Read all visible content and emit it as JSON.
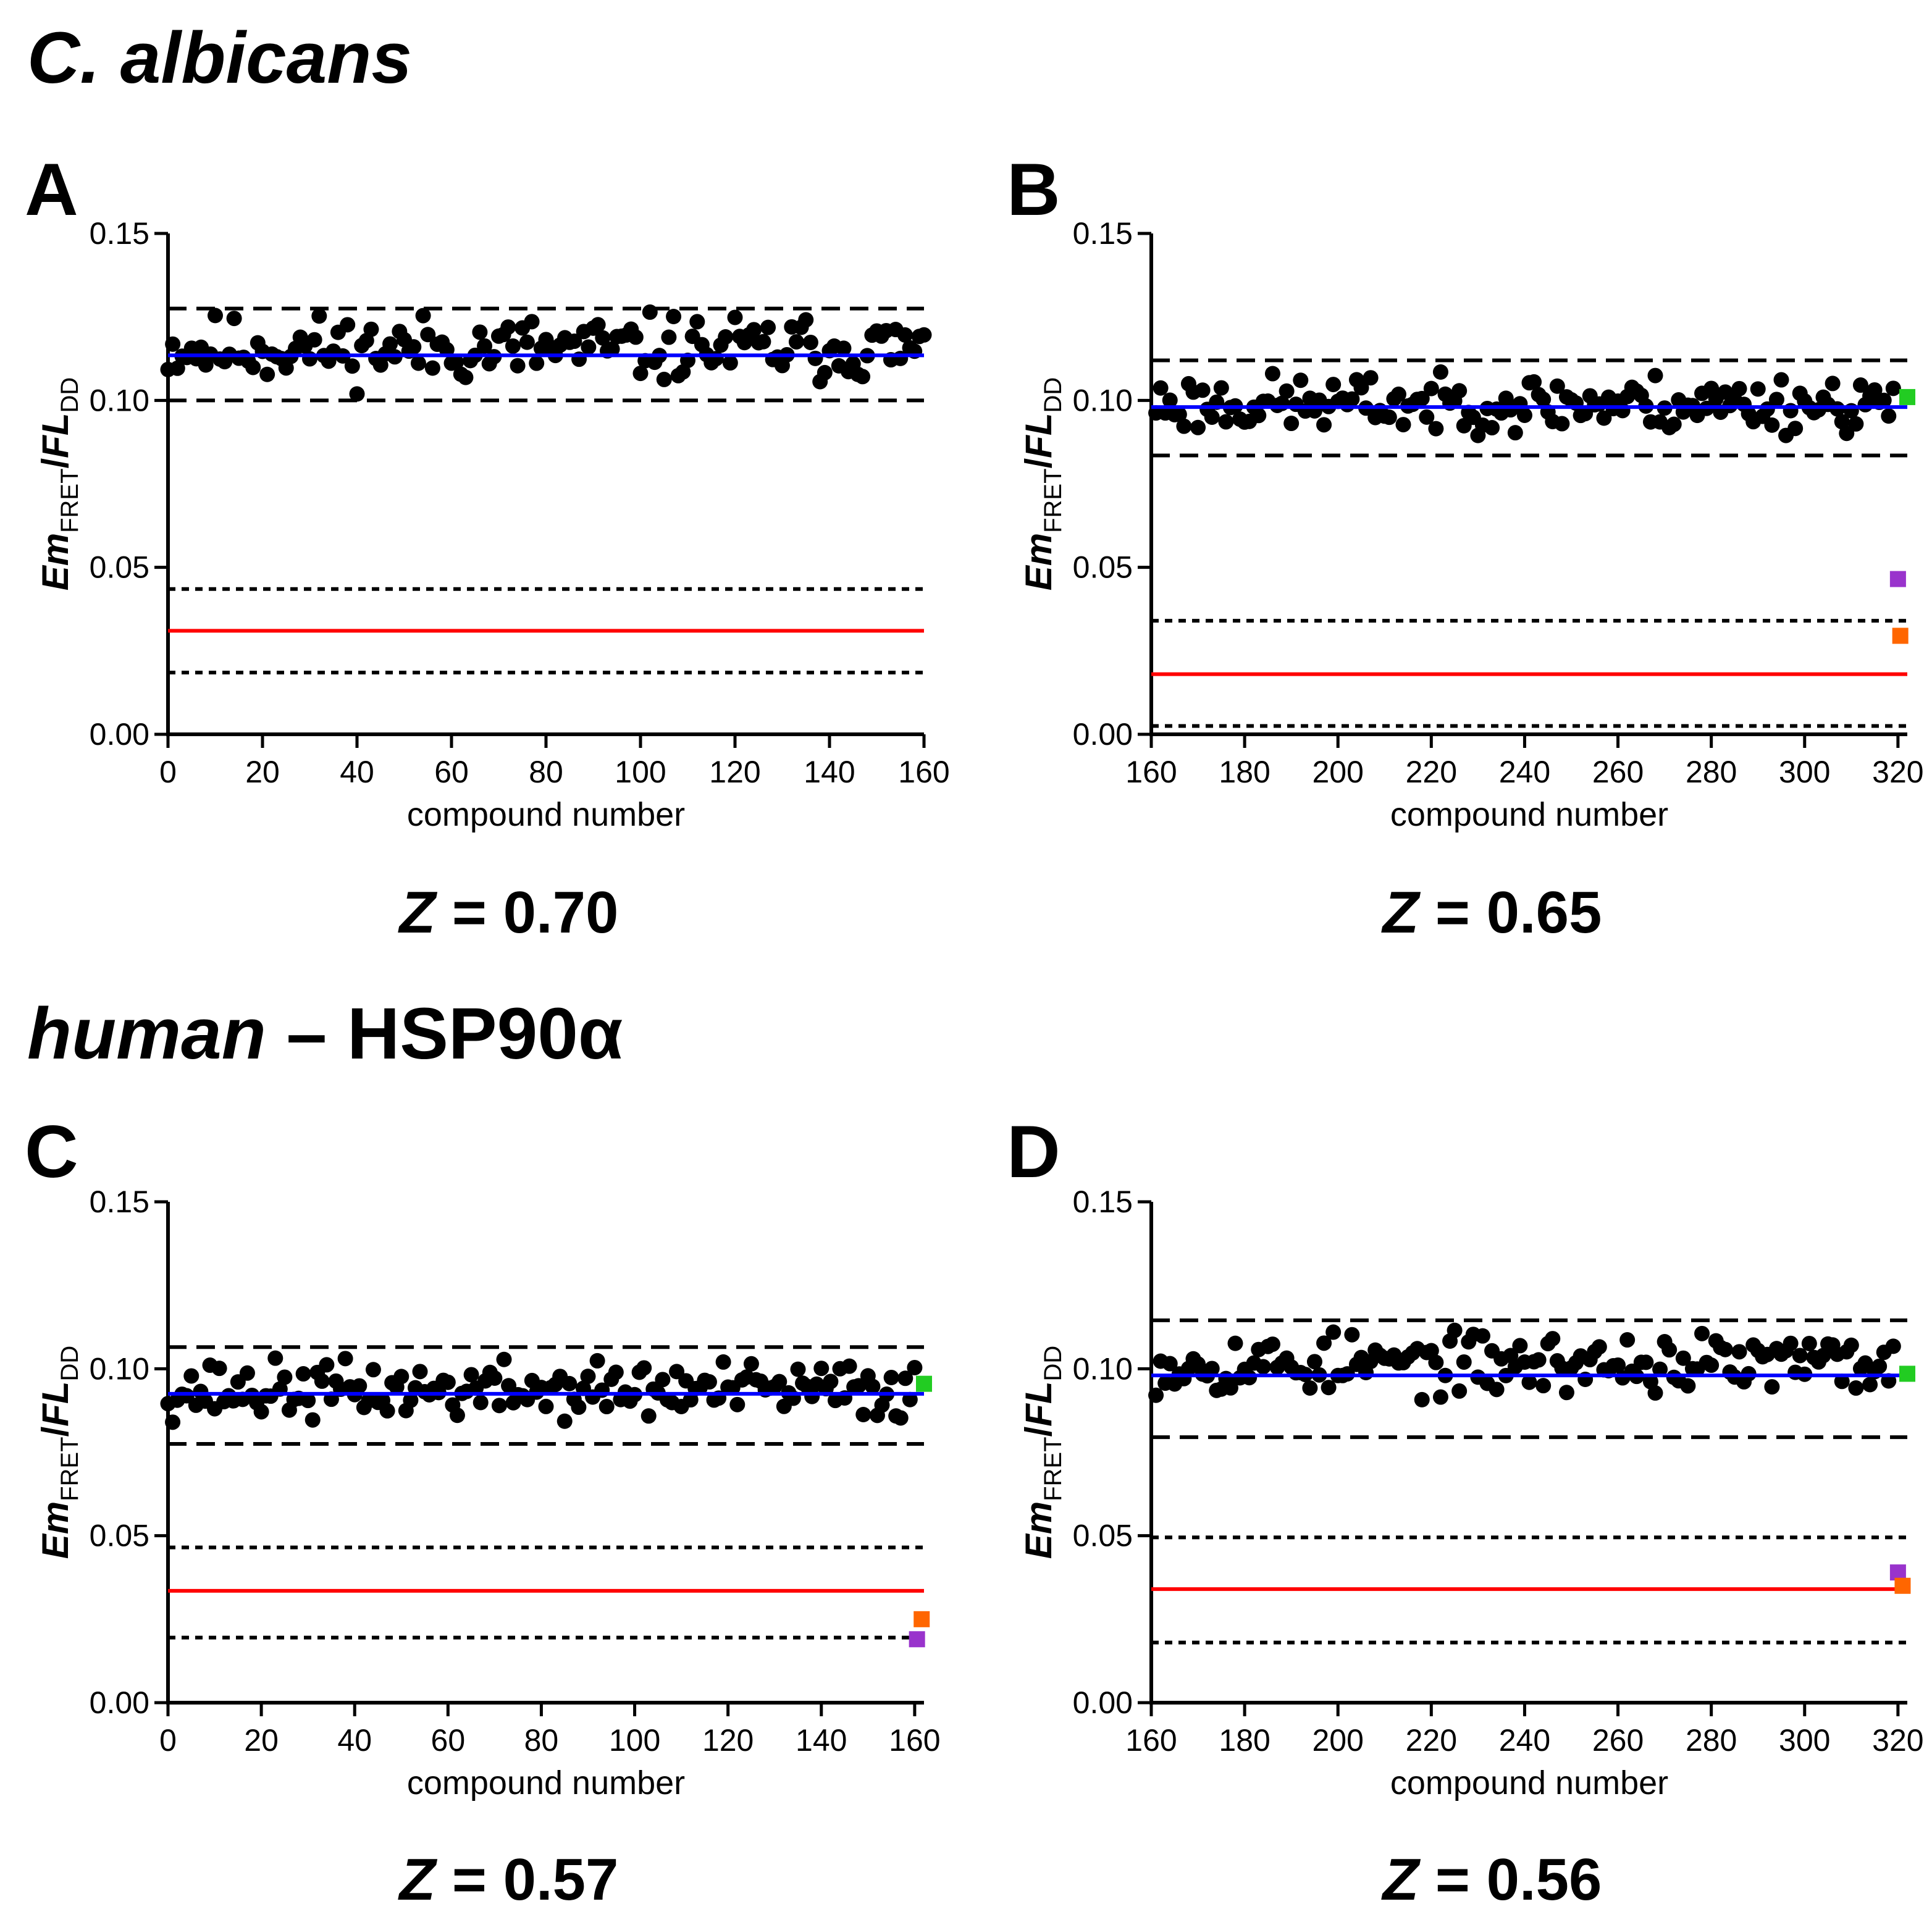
{
  "figure": {
    "section_titles": [
      {
        "italic": "C. albicans",
        "plain": ""
      },
      {
        "italic": "human",
        "plain": " – HSP90α"
      }
    ]
  },
  "colors": {
    "points": "#000000",
    "mean_sample": "#0000ff",
    "mean_control": "#ff0000",
    "green_marker": "#22cc22",
    "purple_marker": "#9933cc",
    "orange_marker": "#ff6600"
  },
  "chart_data": [
    {
      "panel": "A",
      "type": "scatter",
      "xlabel": "compound number",
      "ylabel": {
        "italic": "Em",
        "sub1": "FRET",
        "slash": "/",
        "italic2": "FL",
        "sub2": "DD"
      },
      "xlim": [
        0,
        160
      ],
      "xticks": [
        0,
        20,
        40,
        60,
        80,
        100,
        120,
        140,
        160
      ],
      "ylim": [
        0,
        0.15
      ],
      "yticks": [
        "0.00",
        "0.05",
        "0.10",
        "0.15"
      ],
      "grid": false,
      "z_label": {
        "italic": "Z",
        "text": " = 0.70"
      },
      "mean_sample": 0.1135,
      "sample_bands": [
        0.1275,
        0.1
      ],
      "mean_control": 0.031,
      "control_bands": [
        0.0435,
        0.0185
      ],
      "points": {
        "x_start": 0,
        "x_end": 160,
        "count": 161,
        "mean": 0.1155,
        "min": 0.1005,
        "max": 0.1265,
        "seed": 11
      },
      "markers": []
    },
    {
      "panel": "B",
      "type": "scatter",
      "xlabel": "compound number",
      "ylabel": {
        "italic": "Em",
        "sub1": "FRET",
        "slash": "/",
        "italic2": "FL",
        "sub2": "DD"
      },
      "xlim": [
        160,
        322
      ],
      "xticks": [
        160,
        180,
        200,
        220,
        240,
        260,
        280,
        300,
        320
      ],
      "ylim": [
        0,
        0.15
      ],
      "yticks": [
        "0.00",
        "0.05",
        "0.10",
        "0.15"
      ],
      "grid": false,
      "z_label": {
        "italic": "Z",
        "text": " = 0.65"
      },
      "mean_sample": 0.098,
      "sample_bands": [
        0.112,
        0.0835
      ],
      "mean_control": 0.018,
      "control_bands": [
        0.034,
        0.0025
      ],
      "points": {
        "x_start": 161,
        "x_end": 319,
        "count": 159,
        "mean": 0.099,
        "min": 0.0895,
        "max": 0.1085,
        "seed": 23
      },
      "markers": [
        {
          "color": "green_marker",
          "x": 322,
          "y": 0.101
        },
        {
          "color": "purple_marker",
          "x": 320,
          "y": 0.0465
        },
        {
          "color": "orange_marker",
          "x": 320.5,
          "y": 0.0295
        }
      ]
    },
    {
      "panel": "C",
      "type": "scatter",
      "xlabel": "compound number",
      "ylabel": {
        "italic": "Em",
        "sub1": "FRET",
        "slash": "/",
        "italic2": "FL",
        "sub2": "DD"
      },
      "xlim": [
        0,
        162
      ],
      "xticks": [
        0,
        20,
        40,
        60,
        80,
        100,
        120,
        140,
        160
      ],
      "ylim": [
        0,
        0.15
      ],
      "yticks": [
        "0.00",
        "0.05",
        "0.10",
        "0.15"
      ],
      "grid": false,
      "z_label": {
        "italic": "Z",
        "text": " = 0.57"
      },
      "mean_sample": 0.0925,
      "sample_bands": [
        0.1065,
        0.0775
      ],
      "mean_control": 0.0335,
      "control_bands": [
        0.0465,
        0.0195
      ],
      "points": {
        "x_start": 0,
        "x_end": 160,
        "count": 161,
        "mean": 0.0935,
        "min": 0.084,
        "max": 0.1045,
        "seed": 37
      },
      "markers": [
        {
          "color": "green_marker",
          "x": 162,
          "y": 0.0955
        },
        {
          "color": "orange_marker",
          "x": 161.5,
          "y": 0.025
        },
        {
          "color": "purple_marker",
          "x": 160.5,
          "y": 0.019
        }
      ]
    },
    {
      "panel": "D",
      "type": "scatter",
      "xlabel": "compound number",
      "ylabel": {
        "italic": "Em",
        "sub1": "FRET",
        "slash": "/",
        "italic2": "FL",
        "sub2": "DD"
      },
      "xlim": [
        160,
        322
      ],
      "xticks": [
        160,
        180,
        200,
        220,
        240,
        260,
        280,
        300,
        320
      ],
      "ylim": [
        0,
        0.15
      ],
      "yticks": [
        "0.00",
        "0.05",
        "0.10",
        "0.15"
      ],
      "grid": false,
      "z_label": {
        "italic": "Z",
        "text": " = 0.56"
      },
      "mean_sample": 0.098,
      "sample_bands": [
        0.1145,
        0.0795
      ],
      "mean_control": 0.034,
      "control_bands": [
        0.0495,
        0.018
      ],
      "points": {
        "x_start": 161,
        "x_end": 319,
        "count": 159,
        "mean": 0.1015,
        "min": 0.0855,
        "max": 0.1115,
        "seed": 53
      },
      "markers": [
        {
          "color": "green_marker",
          "x": 322,
          "y": 0.0985
        },
        {
          "color": "purple_marker",
          "x": 320,
          "y": 0.039
        },
        {
          "color": "orange_marker",
          "x": 321,
          "y": 0.035
        }
      ]
    }
  ]
}
